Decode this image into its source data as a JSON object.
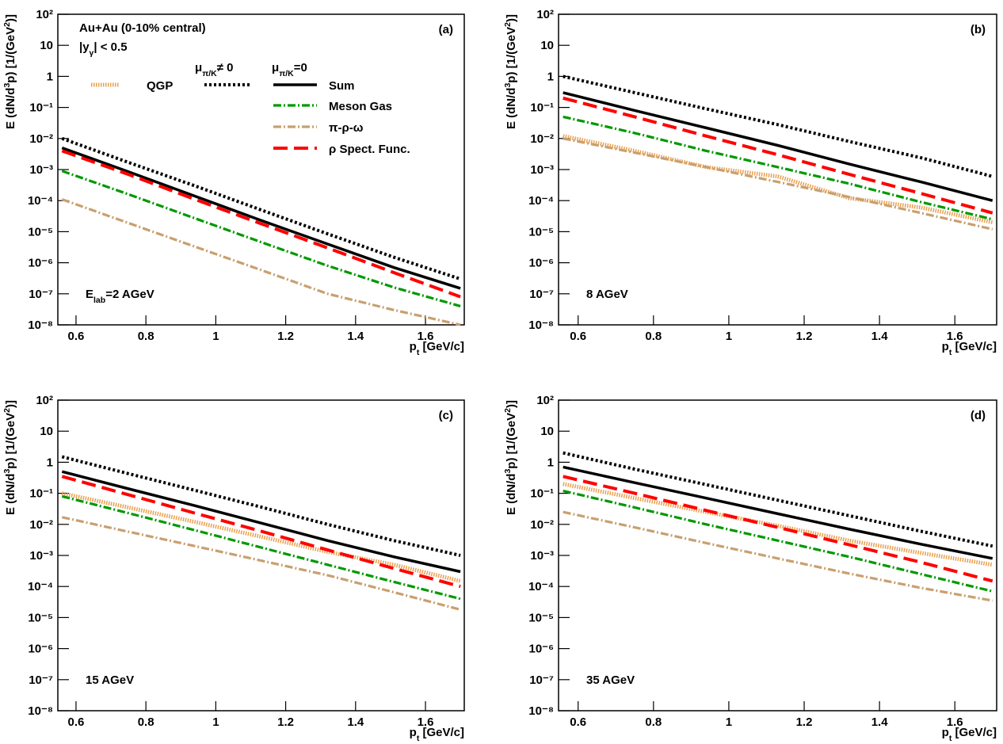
{
  "chart_data": [
    {
      "type": "line",
      "panel_label": "(a)",
      "title": "Au+Au (0-10% central)",
      "subtitle": [
        {
          "text": "|y"
        },
        {
          "text": "γ",
          "shift": "sub"
        },
        {
          "text": "| < 0.5"
        }
      ],
      "annotation": [
        {
          "text": "E"
        },
        {
          "text": "lab",
          "shift": "sub"
        },
        {
          "text": "=2 AGeV"
        }
      ],
      "legend": true,
      "legend_headers": [
        [
          {
            "text": "μ"
          },
          {
            "text": "π/K",
            "shift": "sub"
          },
          {
            "text": "≠ 0"
          }
        ],
        [
          {
            "text": "μ"
          },
          {
            "text": "π/K",
            "shift": "sub"
          },
          {
            "text": "=0"
          }
        ]
      ],
      "ylabel": [
        {
          "text": "E (dN/d"
        },
        {
          "text": "3",
          "shift": "sup"
        },
        {
          "text": "p) [1/(GeV"
        },
        {
          "text": "2",
          "shift": "sup"
        },
        {
          "text": ")]"
        }
      ],
      "xlabel": [
        {
          "text": "p"
        },
        {
          "text": "t",
          "shift": "sub"
        },
        {
          "text": " [GeV/c]"
        }
      ],
      "log_y": true,
      "xlim": [
        0.548,
        1.711
      ],
      "ylim": [
        1e-08,
        100
      ],
      "xticks": [
        0.6,
        0.8,
        1,
        1.2,
        1.4,
        1.6
      ],
      "yticks": [
        {
          "value": 1e-08,
          "label": "10⁻⁸"
        },
        {
          "value": 1e-07,
          "label": "10⁻⁷"
        },
        {
          "value": 1e-06,
          "label": "10⁻⁶"
        },
        {
          "value": 1e-05,
          "label": "10⁻⁵"
        },
        {
          "value": 0.0001,
          "label": "10⁻⁴"
        },
        {
          "value": 0.001,
          "label": "10⁻³"
        },
        {
          "value": 0.01,
          "label": "10⁻²"
        },
        {
          "value": 0.1,
          "label": "10⁻¹"
        },
        1,
        10,
        {
          "value": 100,
          "label": "10²"
        }
      ],
      "x": [
        0.56,
        0.75,
        0.94,
        1.13,
        1.32,
        1.51,
        1.7
      ],
      "series": [
        {
          "name": "QGP",
          "color": "#e8a050",
          "style": "dotted-fine",
          "values": [
            null,
            null,
            null,
            null,
            null,
            null,
            null
          ]
        },
        {
          "color": "#000000",
          "style": "dotted",
          "values": [
            0.01,
            0.0017,
            0.0003,
            5e-05,
            8.5e-06,
            1.5e-06,
            3e-07
          ]
        },
        {
          "name": "Sum",
          "color": "#000000",
          "style": "solid",
          "values": [
            0.005,
            0.00085,
            0.00014,
            2.3e-05,
            4e-06,
            7e-07,
            1.5e-07
          ]
        },
        {
          "name": "Meson Gas",
          "color": "#009900",
          "style": "dashdot",
          "values": [
            0.0009,
            0.00016,
            2.7e-05,
            4.6e-06,
            8e-07,
            1.6e-07,
            4e-08
          ]
        },
        {
          "name": "π-ρ-ω",
          "color": "#c8a070",
          "style": "dashdot",
          "values": [
            0.00011,
            1.9e-05,
            3.3e-06,
            5.8e-07,
            1e-07,
            3e-08,
            1e-08
          ]
        },
        {
          "name": "ρ Spect. Func.",
          "color": "#ff0000",
          "style": "dashed",
          "values": [
            0.004,
            0.0007,
            0.00011,
            1.8e-05,
            3e-06,
            4.8e-07,
            8e-08
          ]
        }
      ]
    },
    {
      "type": "line",
      "panel_label": "(b)",
      "annotation": [
        {
          "text": "8 AGeV"
        }
      ],
      "ylabel": [
        {
          "text": "E (dN/d"
        },
        {
          "text": "3",
          "shift": "sup"
        },
        {
          "text": "p) [1/(GeV"
        },
        {
          "text": "2",
          "shift": "sup"
        },
        {
          "text": ")]"
        }
      ],
      "xlabel": [
        {
          "text": "p"
        },
        {
          "text": "t",
          "shift": "sub"
        },
        {
          "text": " [GeV/c]"
        }
      ],
      "log_y": true,
      "xlim": [
        0.548,
        1.711
      ],
      "ylim": [
        1e-08,
        100
      ],
      "xticks": [
        0.6,
        0.8,
        1,
        1.2,
        1.4,
        1.6
      ],
      "yticks": [
        {
          "value": 1e-08,
          "label": "10⁻⁸"
        },
        {
          "value": 1e-07,
          "label": "10⁻⁷"
        },
        {
          "value": 1e-06,
          "label": "10⁻⁶"
        },
        {
          "value": 1e-05,
          "label": "10⁻⁵"
        },
        {
          "value": 0.0001,
          "label": "10⁻⁴"
        },
        {
          "value": 0.001,
          "label": "10⁻³"
        },
        {
          "value": 0.01,
          "label": "10⁻²"
        },
        {
          "value": 0.1,
          "label": "10⁻¹"
        },
        1,
        10,
        {
          "value": 100,
          "label": "10²"
        }
      ],
      "x": [
        0.56,
        0.75,
        0.94,
        1.13,
        1.32,
        1.51,
        1.7
      ],
      "series": [
        {
          "color": "#e8a050",
          "style": "dotted-fine",
          "values": [
            0.012,
            0.004,
            0.0012,
            0.0006,
            0.00012,
            6e-05,
            2e-05
          ]
        },
        {
          "color": "#000000",
          "style": "dotted",
          "values": [
            1,
            0.3,
            0.09,
            0.028,
            0.008,
            0.0024,
            0.0006
          ]
        },
        {
          "color": "#000000",
          "style": "solid",
          "values": [
            0.3,
            0.08,
            0.022,
            0.006,
            0.0015,
            0.0004,
            0.0001
          ]
        },
        {
          "color": "#009900",
          "style": "dashdot",
          "values": [
            0.05,
            0.015,
            0.004,
            0.0012,
            0.00035,
            9e-05,
            2.5e-05
          ]
        },
        {
          "color": "#c8a070",
          "style": "dashdot",
          "values": [
            0.01,
            0.0035,
            0.0012,
            0.0004,
            0.00013,
            4e-05,
            1.2e-05
          ]
        },
        {
          "color": "#ff0000",
          "style": "dashed",
          "values": [
            0.2,
            0.05,
            0.012,
            0.003,
            0.0007,
            0.00017,
            4e-05
          ]
        }
      ]
    },
    {
      "type": "line",
      "panel_label": "(c)",
      "annotation": [
        {
          "text": "15 AGeV"
        }
      ],
      "ylabel": [
        {
          "text": "E (dN/d"
        },
        {
          "text": "3",
          "shift": "sup"
        },
        {
          "text": "p) [1/(GeV"
        },
        {
          "text": "2",
          "shift": "sup"
        },
        {
          "text": ")]"
        }
      ],
      "xlabel": [
        {
          "text": "p"
        },
        {
          "text": "t",
          "shift": "sub"
        },
        {
          "text": " [GeV/c]"
        }
      ],
      "log_y": true,
      "xlim": [
        0.548,
        1.711
      ],
      "ylim": [
        1e-08,
        100
      ],
      "xticks": [
        0.6,
        0.8,
        1,
        1.2,
        1.4,
        1.6
      ],
      "yticks": [
        {
          "value": 1e-08,
          "label": "10⁻⁸"
        },
        {
          "value": 1e-07,
          "label": "10⁻⁷"
        },
        {
          "value": 1e-06,
          "label": "10⁻⁶"
        },
        {
          "value": 1e-05,
          "label": "10⁻⁵"
        },
        {
          "value": 0.0001,
          "label": "10⁻⁴"
        },
        {
          "value": 0.001,
          "label": "10⁻³"
        },
        {
          "value": 0.01,
          "label": "10⁻²"
        },
        {
          "value": 0.1,
          "label": "10⁻¹"
        },
        1,
        10,
        {
          "value": 100,
          "label": "10²"
        }
      ],
      "x": [
        0.56,
        0.75,
        0.94,
        1.13,
        1.32,
        1.51,
        1.7
      ],
      "series": [
        {
          "color": "#e8a050",
          "style": "dotted-fine",
          "values": [
            0.1,
            0.035,
            0.012,
            0.004,
            0.0013,
            0.0005,
            0.00015
          ]
        },
        {
          "color": "#000000",
          "style": "dotted",
          "values": [
            1.5,
            0.43,
            0.125,
            0.036,
            0.01,
            0.003,
            0.001
          ]
        },
        {
          "color": "#000000",
          "style": "solid",
          "values": [
            0.5,
            0.14,
            0.04,
            0.011,
            0.003,
            0.0009,
            0.0003
          ]
        },
        {
          "color": "#009900",
          "style": "dashdot",
          "values": [
            0.08,
            0.023,
            0.0065,
            0.0018,
            0.0005,
            0.00014,
            4e-05
          ]
        },
        {
          "color": "#c8a070",
          "style": "dashdot",
          "values": [
            0.017,
            0.0058,
            0.002,
            0.00068,
            0.00023,
            6.5e-05,
            1.8e-05
          ]
        },
        {
          "color": "#ff0000",
          "style": "dashed",
          "values": [
            0.35,
            0.09,
            0.023,
            0.006,
            0.0015,
            0.00038,
            0.0001
          ]
        }
      ]
    },
    {
      "type": "line",
      "panel_label": "(d)",
      "annotation": [
        {
          "text": "35 AGeV"
        }
      ],
      "ylabel": [
        {
          "text": "E (dN/d"
        },
        {
          "text": "3",
          "shift": "sup"
        },
        {
          "text": "p) [1/(GeV"
        },
        {
          "text": "2",
          "shift": "sup"
        },
        {
          "text": ")]"
        }
      ],
      "xlabel": [
        {
          "text": "p"
        },
        {
          "text": "t",
          "shift": "sub"
        },
        {
          "text": " [GeV/c]"
        }
      ],
      "log_y": true,
      "xlim": [
        0.548,
        1.711
      ],
      "ylim": [
        1e-08,
        100
      ],
      "xticks": [
        0.6,
        0.8,
        1,
        1.2,
        1.4,
        1.6
      ],
      "yticks": [
        {
          "value": 1e-08,
          "label": "10⁻⁸"
        },
        {
          "value": 1e-07,
          "label": "10⁻⁷"
        },
        {
          "value": 1e-06,
          "label": "10⁻⁶"
        },
        {
          "value": 1e-05,
          "label": "10⁻⁵"
        },
        {
          "value": 0.0001,
          "label": "10⁻⁴"
        },
        {
          "value": 0.001,
          "label": "10⁻³"
        },
        {
          "value": 0.01,
          "label": "10⁻²"
        },
        {
          "value": 0.1,
          "label": "10⁻¹"
        },
        1,
        10,
        {
          "value": 100,
          "label": "10²"
        }
      ],
      "x": [
        0.56,
        0.75,
        0.94,
        1.13,
        1.32,
        1.51,
        1.7
      ],
      "series": [
        {
          "color": "#e8a050",
          "style": "dotted-fine",
          "values": [
            0.2,
            0.07,
            0.025,
            0.009,
            0.003,
            0.0012,
            0.0005
          ]
        },
        {
          "color": "#000000",
          "style": "dotted",
          "values": [
            2,
            0.6,
            0.19,
            0.06,
            0.019,
            0.006,
            0.002
          ]
        },
        {
          "color": "#000000",
          "style": "solid",
          "values": [
            0.7,
            0.22,
            0.07,
            0.022,
            0.007,
            0.0023,
            0.0008
          ]
        },
        {
          "color": "#009900",
          "style": "dashdot",
          "values": [
            0.12,
            0.035,
            0.01,
            0.003,
            0.0009,
            0.00025,
            7e-05
          ]
        },
        {
          "color": "#c8a070",
          "style": "dashdot",
          "values": [
            0.025,
            0.008,
            0.0025,
            0.0008,
            0.00026,
            9e-05,
            3.5e-05
          ]
        },
        {
          "color": "#ff0000",
          "style": "dashed",
          "values": [
            0.35,
            0.1,
            0.028,
            0.008,
            0.0022,
            0.0006,
            0.00015
          ]
        }
      ]
    }
  ]
}
